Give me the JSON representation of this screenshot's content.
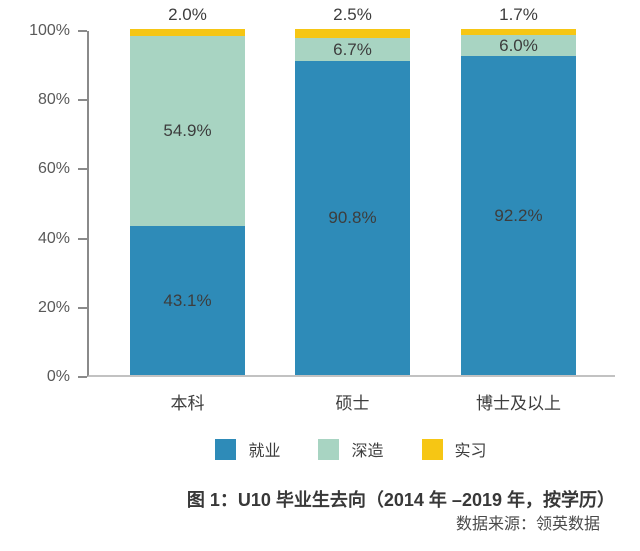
{
  "chart_data": {
    "type": "bar",
    "stacked": true,
    "orientation": "vertical",
    "title": "图 1：U10 毕业生去向（2014 年 –2019 年，按学历）",
    "source": "数据来源：领英数据",
    "categories": [
      "本科",
      "硕士",
      "博士及以上"
    ],
    "series": [
      {
        "name": "就业",
        "color": "#2E8BB8",
        "values": [
          43.1,
          90.8,
          92.2
        ],
        "label_position": "inside"
      },
      {
        "name": "深造",
        "color": "#A8D4C2",
        "values": [
          54.9,
          6.7,
          6.0
        ],
        "label_position": "inside"
      },
      {
        "name": "实习",
        "color": "#F6C614",
        "values": [
          2.0,
          2.5,
          1.7
        ],
        "label_position": "above"
      }
    ],
    "data_labels": {
      "就业": [
        "43.1%",
        "90.8%",
        "92.2%"
      ],
      "深造": [
        "54.9%",
        "6.7%",
        "6.0%"
      ],
      "实习": [
        "2.0%",
        "2.5%",
        "1.7%"
      ]
    },
    "ylim": [
      0,
      100
    ],
    "y_ticks": [
      0,
      20,
      40,
      60,
      80,
      100
    ],
    "y_tick_labels": [
      "0%",
      "20%",
      "40%",
      "60%",
      "80%",
      "100%"
    ],
    "legend_position": "bottom",
    "legend_entries": [
      "就业",
      "深造",
      "实习"
    ],
    "grid": false
  },
  "colors": {
    "axis_line": "#8a8a8a",
    "baseline": "#c2c2c2",
    "tick_label": "#595959",
    "data_label": "#3d3d3d"
  }
}
